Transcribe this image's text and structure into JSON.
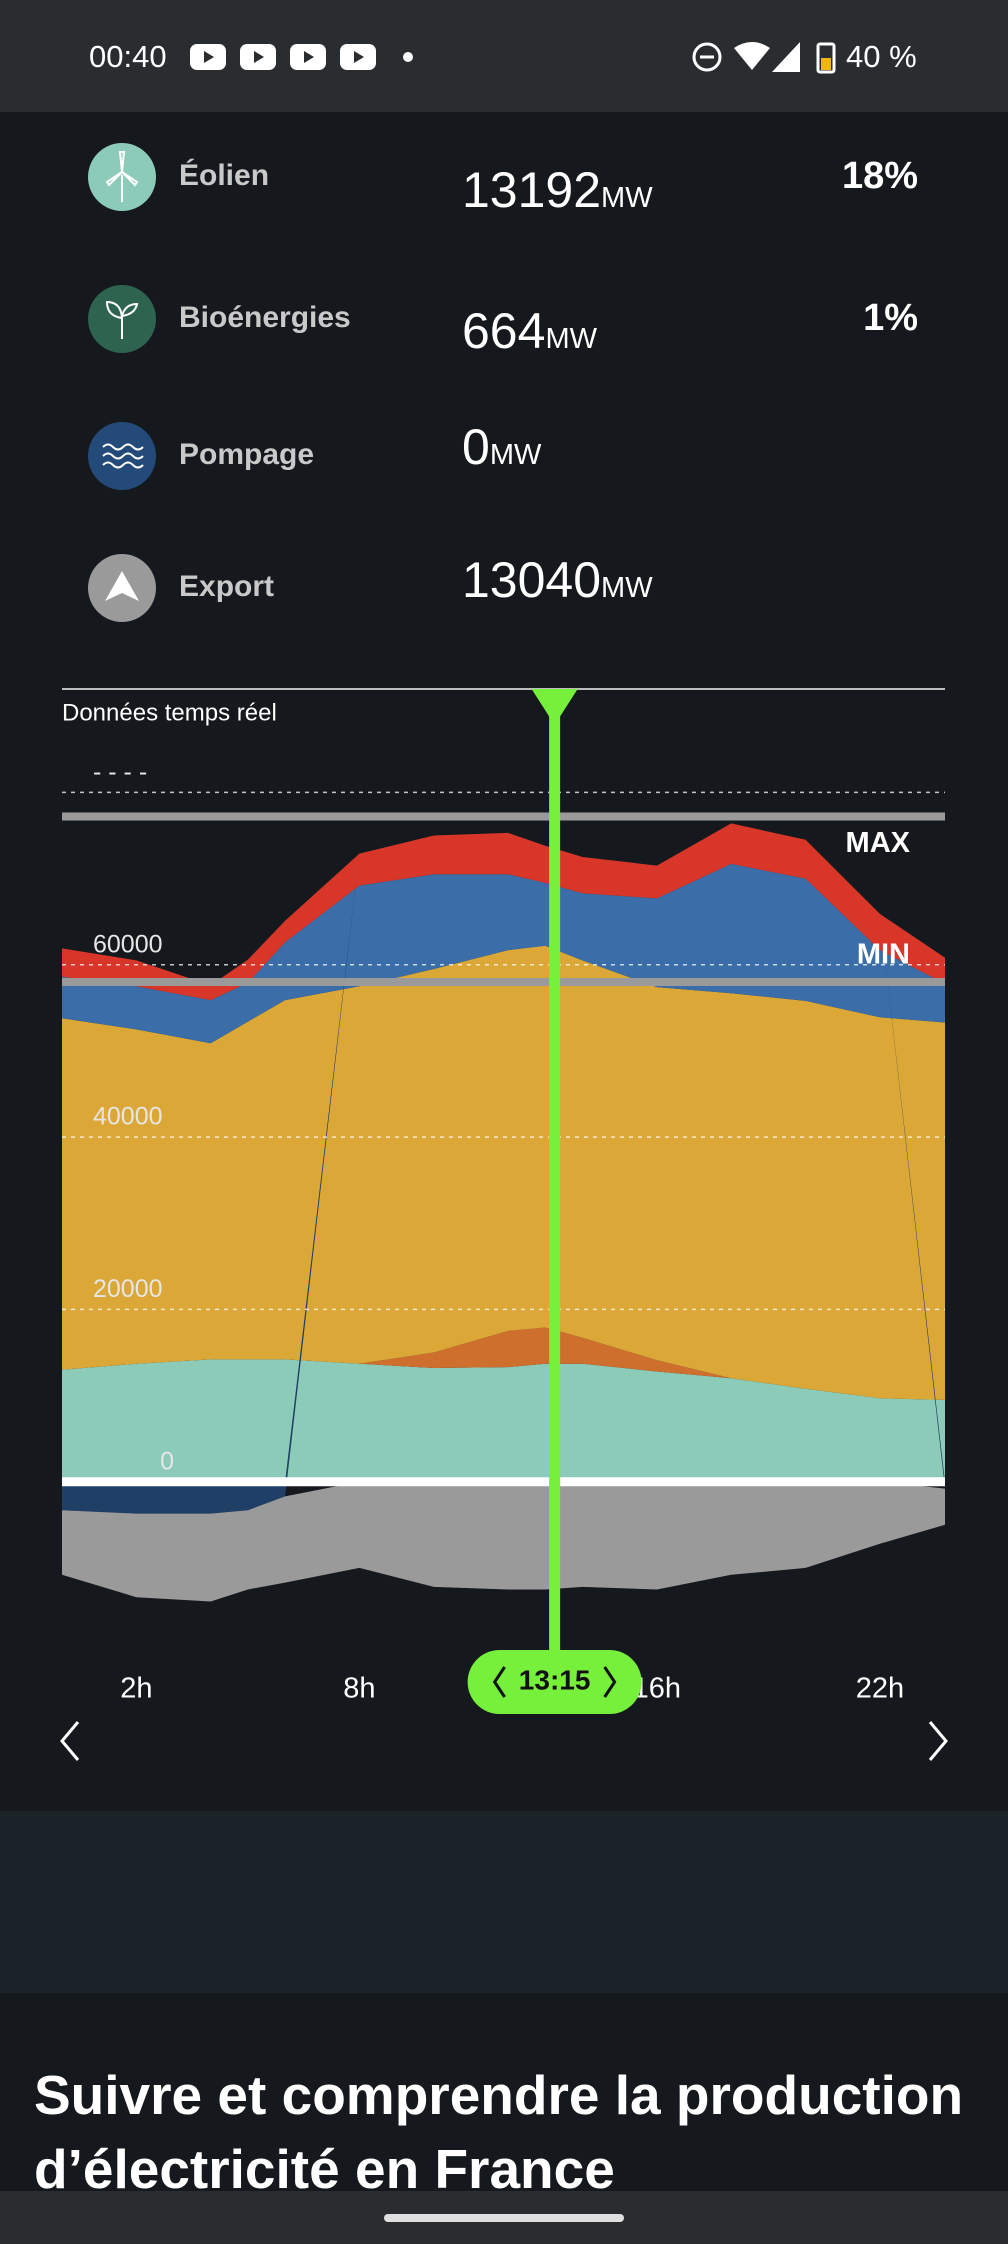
{
  "status_bar": {
    "time": "00:40",
    "battery": "40 %"
  },
  "rows": [
    {
      "label": "Éolien",
      "value": 13192,
      "unit": "MW",
      "percent": "18%"
    },
    {
      "label": "Bioénergies",
      "value": 664,
      "unit": "MW",
      "percent": "1%"
    },
    {
      "label": "Pompage",
      "value": 0,
      "unit": "MW"
    },
    {
      "label": "Export",
      "value": 13040,
      "unit": "MW"
    }
  ],
  "chart_data": {
    "type": "area",
    "title": "Données temps réel",
    "x": [
      0,
      2,
      4,
      5,
      6,
      8,
      10,
      12,
      13,
      14,
      16,
      18,
      20,
      22,
      23.75
    ],
    "xlim": [
      0,
      23.75
    ],
    "xticks": [
      {
        "value": 2,
        "label": "2h"
      },
      {
        "value": 8,
        "label": "8h"
      },
      {
        "value": 16,
        "label": "16h"
      },
      {
        "value": 22,
        "label": "22h"
      }
    ],
    "ylim": [
      -15000,
      92000
    ],
    "yticks": [
      0,
      20000,
      40000,
      60000,
      {
        "value": 80000,
        "label": "- - - -"
      }
    ],
    "grid": true,
    "series": [
      {
        "color": "#8ccbb8",
        "values": [
          13000,
          13700,
          14200,
          14200,
          14200,
          13700,
          13200,
          13300,
          13700,
          13700,
          12800,
          12000,
          10800,
          9700,
          9500
        ]
      },
      {
        "color": "#cf6f2e",
        "values": [
          0,
          0,
          0,
          0,
          0,
          0,
          1800,
          4200,
          4200,
          3000,
          1300,
          0,
          0,
          0,
          0
        ]
      },
      {
        "color": "#dba737",
        "values": [
          40800,
          38800,
          36700,
          39200,
          41700,
          43800,
          44500,
          44200,
          44300,
          43800,
          43300,
          44700,
          45000,
          44200,
          43800
        ]
      },
      {
        "color": "#3b6ea8",
        "values": [
          4800,
          5000,
          5000,
          4500,
          6700,
          11700,
          11000,
          8800,
          7300,
          7800,
          10300,
          15000,
          14200,
          7800,
          4500
        ]
      },
      {
        "color": "#d9362a",
        "values": [
          3300,
          3000,
          1700,
          2700,
          2500,
          3700,
          4500,
          4800,
          4300,
          4200,
          3800,
          4700,
          4500,
          4200,
          3000
        ]
      },
      {
        "color": "#1f3f66",
        "values": [
          -3300,
          -3700,
          -3700,
          -3300,
          -1700,
          0,
          0,
          0,
          0,
          0,
          0,
          0,
          0,
          0,
          -800
        ]
      },
      {
        "color": "#9a9a9a",
        "values": [
          -7500,
          -9700,
          -10200,
          -9200,
          -10000,
          -10000,
          -12200,
          -12500,
          -12500,
          -12200,
          -12500,
          -10800,
          -10000,
          -7200,
          -4200
        ]
      }
    ],
    "max_line": {
      "label": "MAX",
      "value": 77200
    },
    "min_line": {
      "label": "MIN",
      "value": 58000
    },
    "cursor": {
      "value": 13.25,
      "label": "13:15"
    }
  },
  "section": {
    "heading": "Suivre et comprendre la production d’électricité en France"
  }
}
